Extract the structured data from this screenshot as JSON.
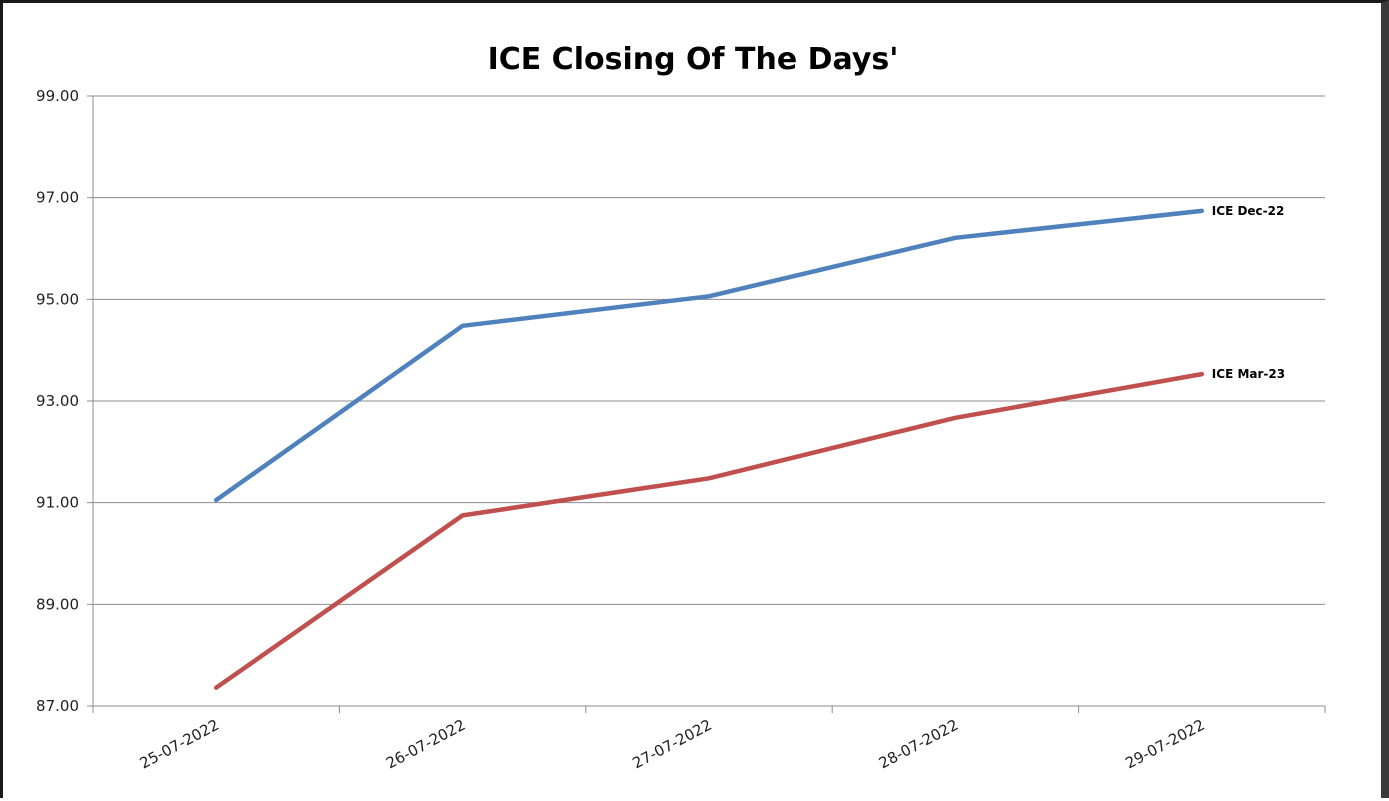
{
  "chart_data": {
    "type": "line",
    "title": "ICE Closing Of The Days'",
    "xlabel": "",
    "ylabel": "",
    "categories": [
      "25-07-2022",
      "26-07-2022",
      "27-07-2022",
      "28-07-2022",
      "29-07-2022"
    ],
    "ylim": [
      87,
      99
    ],
    "yticks": [
      "87.00",
      "89.00",
      "91.00",
      "93.00",
      "95.00",
      "97.00",
      "99.00"
    ],
    "grid": true,
    "legend": "none",
    "series": [
      {
        "name": "ICE Dec-22",
        "color": "#4f81bd",
        "values": [
          91.05,
          94.48,
          95.06,
          96.21,
          96.74
        ]
      },
      {
        "name": "ICE Mar-23",
        "color": "#c0504d",
        "values": [
          87.36,
          90.75,
          91.48,
          92.67,
          93.53
        ]
      }
    ]
  }
}
